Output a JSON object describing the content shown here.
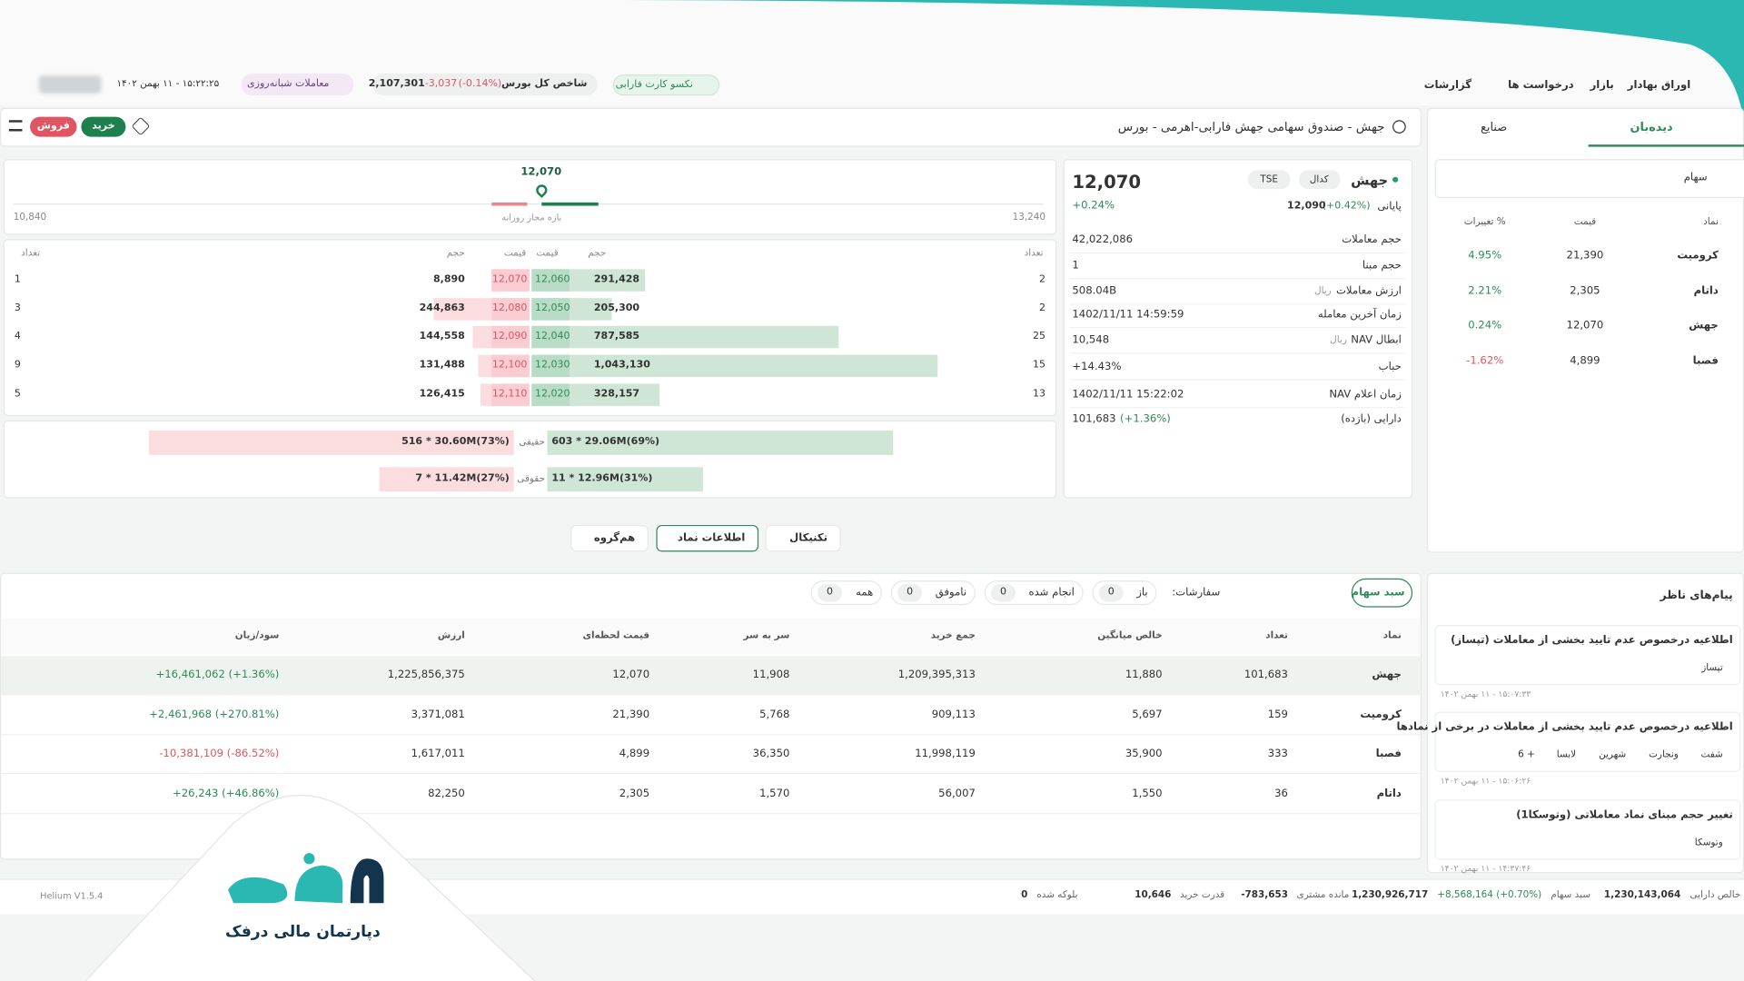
{
  "header": {
    "nav": [
      "اوراق بهادار",
      "بازار",
      "درخواست ها",
      "گزارشات"
    ],
    "card_button": "نکسو کارت فارابی",
    "index": {
      "name": "شاخص کل بورس",
      "pct": "(-0.14%)",
      "change": "-3,037",
      "value": "2,107,301"
    },
    "night_trading": "معاملات شبانه‌روزی",
    "datetime": "۱۵:۲۲:۲۵ - ۱۱ بهمن ۱۴۰۲"
  },
  "watchlist": {
    "tabs": [
      "دیده‌بان",
      "صنایع"
    ],
    "dropdown": "سهام",
    "columns": [
      "نماد",
      "قیمت",
      "% تغییرات"
    ],
    "rows": [
      [
        "کرومیت",
        "21,390",
        "4.95%"
      ],
      [
        "داتام",
        "2,305",
        "2.21%"
      ],
      [
        "جهش",
        "12,070",
        "0.24%"
      ],
      [
        "فصبا",
        "4,899",
        "-1.62%"
      ]
    ]
  },
  "search": {
    "text": "جهش - صندوق سهامی جهش فارابی-اهرمی - بورس",
    "buy": "خرید",
    "sell": "فروش"
  },
  "price_range": {
    "current": 12070,
    "current_label": "12,070",
    "min": 10840,
    "min_label": "10,840",
    "max": 13240,
    "max_label": "13,240",
    "caption": "بازه مجاز روزانه"
  },
  "order_book": {
    "buy_headers": [
      "تعداد",
      "حجم",
      "قیمت"
    ],
    "sell_headers": [
      "قیمت",
      "حجم",
      "تعداد"
    ],
    "buy_counts": [
      "2",
      "2",
      "25",
      "15",
      "13"
    ],
    "buy_volumes": [
      291428,
      205300,
      787585,
      1043130,
      328157
    ],
    "buy_volume_labels": [
      "291,428",
      "205,300",
      "787,585",
      "1,043,130",
      "328,157"
    ],
    "buy_prices": [
      "12,060",
      "12,050",
      "12,040",
      "12,030",
      "12,020"
    ],
    "sell_prices": [
      "12,070",
      "12,080",
      "12,090",
      "12,100",
      "12,110"
    ],
    "sell_volumes": [
      8890,
      244863,
      144558,
      131488,
      126415
    ],
    "sell_volume_labels": [
      "8,890",
      "244,863",
      "144,558",
      "131,488",
      "126,415"
    ],
    "sell_counts": [
      "1",
      "3",
      "4",
      "9",
      "5"
    ]
  },
  "traders": {
    "rows": [
      {
        "type": "حقیقی",
        "buy_pct": 69,
        "buy_label": "603 * 29.06M(69%)",
        "sell_pct": 73,
        "sell_label": "516 * 30.60M(73%)"
      },
      {
        "type": "حقوقی",
        "buy_pct": 31,
        "buy_label": "11 * 12.96M(31%)",
        "sell_pct": 27,
        "sell_label": "7 * 11.42M(27%)"
      }
    ]
  },
  "symbol_info": {
    "symbol": "جهش",
    "codal": "کدال",
    "market": "TSE",
    "price": "12,070",
    "change": "+0.24%",
    "closing_label": "پایانی",
    "closing_price": "12,090",
    "closing_change": "(+0.42%)",
    "rows": [
      {
        "label": "حجم معاملات",
        "value": "42,022,086"
      },
      {
        "label": "حجم مبنا",
        "value": "1"
      },
      {
        "label": "ارزش معاملات",
        "unit": "ریال",
        "value": "508.04B"
      },
      {
        "label": "زمان آخرین معامله",
        "value": "1402/11/11 14:59:59"
      },
      {
        "label": "ابطال NAV",
        "unit": "ریال",
        "value": "10,548"
      },
      {
        "label": "حباب",
        "value": "+14.43%"
      },
      {
        "label": "زمان اعلام NAV",
        "value": "1402/11/11 15:22:02"
      },
      {
        "label": "دارایی (بازده)",
        "value": "101,683",
        "extra": "(+1.36%)"
      }
    ]
  },
  "tabs": [
    "تکنیکال",
    "اطلاعات نماد",
    "هم‌گروه"
  ],
  "portfolio": {
    "title": "سبد سهام",
    "orders_label": "سفارشات:",
    "filters": [
      {
        "name": "باز",
        "count": "0"
      },
      {
        "name": "انجام شده",
        "count": "0"
      },
      {
        "name": "ناموفق",
        "count": "0"
      },
      {
        "name": "همه",
        "count": "0"
      }
    ],
    "columns": [
      "نماد",
      "تعداد",
      "خالص میانگین",
      "جمع خرید",
      "سر به سر",
      "قیمت لحظه‌ای",
      "ارزش",
      "سود/زیان"
    ],
    "rows": [
      [
        "جهش",
        "101,683",
        "11,880",
        "1,209,395,313",
        "11,908",
        "12,070",
        "1,225,856,375",
        "+16,461,062 (+1.36%)"
      ],
      [
        "کرومیت",
        "159",
        "5,697",
        "909,113",
        "5,768",
        "21,390",
        "3,371,081",
        "+2,461,968 (+270.81%)"
      ],
      [
        "فصبا",
        "333",
        "35,900",
        "11,998,119",
        "36,350",
        "4,899",
        "1,617,011",
        "-10,381,109 (-86.52%)"
      ],
      [
        "داتام",
        "36",
        "1,550",
        "56,007",
        "1,570",
        "2,305",
        "82,250",
        "+26,243 (+46.86%)"
      ]
    ]
  },
  "messages": {
    "title": "پیام‌های ناظر",
    "items": [
      {
        "title": "اطلاعیه درخصوص عدم تایید بخشی از معاملات (تپساز)",
        "tags": [
          "تپساز"
        ],
        "time": "۱۵:۰۷:۳۳ - ۱۱ بهمن ۱۴۰۲"
      },
      {
        "title": "اطلاعیه درخصوص عدم تایید بخشی از معاملات در برخی از نمادها",
        "tags": [
          "شفت",
          "ونجارت",
          "شهرین",
          "لابسا",
          "6 +"
        ],
        "time": "۱۵:۰۶:۲۶ - ۱۱ بهمن ۱۴۰۲"
      },
      {
        "title": "تغییر حجم مبنای نماد معاملاتی (وتوسکا1)",
        "tags": [
          "وتوسکا"
        ],
        "time": "۱۴:۳۷:۴۶ - ۱۱ بهمن ۱۴۰۲"
      }
    ]
  },
  "footer": {
    "items": [
      {
        "label": "خالص دارایی",
        "value": "1,230,143,064"
      },
      {
        "label": "سبد سهام",
        "change": "+8,568,164 (+0.70%)",
        "value": "1,230,926,717"
      },
      {
        "label": "مانده مشتری",
        "value": "-783,653"
      },
      {
        "label": "قدرت خرید",
        "value": "10,646"
      },
      {
        "label": "بلوکه شده",
        "value": "0"
      }
    ],
    "version": "Helium V1.5.4"
  },
  "brand": "دپارتمان مالی درفک"
}
